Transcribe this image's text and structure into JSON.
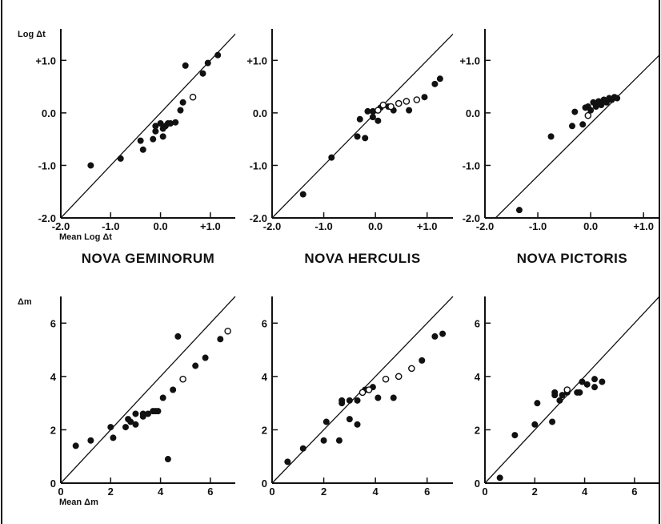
{
  "chart_data": [
    {
      "type": "scatter",
      "title": "",
      "xlabel": "Mean Log Δt",
      "ylabel": "Log Δt",
      "xlim": [
        -2.0,
        1.5
      ],
      "ylim": [
        -2.0,
        1.6
      ],
      "xticks": [
        -2.0,
        -1.0,
        0.0,
        1.0
      ],
      "xtick_labels": [
        "-2.0",
        "-1.0",
        "0.0",
        "+1.0"
      ],
      "yticks": [
        -2.0,
        -1.0,
        0.0,
        1.0
      ],
      "ytick_labels": [
        "-2.0",
        "-1.0",
        "0.0",
        "+1.0"
      ],
      "reference_line": "y = x",
      "series": [
        {
          "marker": "filled",
          "points": [
            [
              -1.4,
              -1.0
            ],
            [
              -0.8,
              -0.87
            ],
            [
              -0.4,
              -0.53
            ],
            [
              -0.35,
              -0.7
            ],
            [
              -0.15,
              -0.5
            ],
            [
              -0.1,
              -0.35
            ],
            [
              -0.1,
              -0.25
            ],
            [
              0.0,
              -0.2
            ],
            [
              0.05,
              -0.3
            ],
            [
              0.05,
              -0.45
            ],
            [
              0.1,
              -0.25
            ],
            [
              0.15,
              -0.2
            ],
            [
              0.2,
              -0.2
            ],
            [
              0.3,
              -0.18
            ],
            [
              0.4,
              0.05
            ],
            [
              0.45,
              0.2
            ],
            [
              0.5,
              0.9
            ],
            [
              0.85,
              0.75
            ],
            [
              0.95,
              0.95
            ],
            [
              1.15,
              1.1
            ]
          ]
        },
        {
          "marker": "open",
          "points": [
            [
              0.65,
              0.3
            ]
          ]
        }
      ],
      "footer": "NOVA GEMINORUM"
    },
    {
      "type": "scatter",
      "title": "",
      "xlabel": "",
      "ylabel": "",
      "xlim": [
        -2.0,
        1.5
      ],
      "ylim": [
        -2.0,
        1.6
      ],
      "xticks": [
        -2.0,
        -1.0,
        0.0,
        1.0
      ],
      "xtick_labels": [
        "-2.0",
        "-1.0",
        "0.0",
        "+1.0"
      ],
      "yticks": [
        -2.0,
        -1.0,
        0.0,
        1.0
      ],
      "ytick_labels": [
        "-2.0",
        "-1.0",
        "0.0",
        "+1.0"
      ],
      "reference_line": "y = x",
      "series": [
        {
          "marker": "filled",
          "points": [
            [
              -1.4,
              -1.55
            ],
            [
              -0.85,
              -0.85
            ],
            [
              -0.35,
              -0.45
            ],
            [
              -0.3,
              -0.12
            ],
            [
              -0.2,
              -0.48
            ],
            [
              -0.15,
              0.03
            ],
            [
              -0.05,
              0.03
            ],
            [
              -0.05,
              -0.08
            ],
            [
              0.05,
              -0.15
            ],
            [
              0.1,
              0.1
            ],
            [
              0.25,
              0.12
            ],
            [
              0.35,
              0.05
            ],
            [
              0.65,
              0.05
            ],
            [
              0.95,
              0.3
            ],
            [
              1.15,
              0.55
            ],
            [
              1.25,
              0.65
            ]
          ]
        },
        {
          "marker": "open",
          "points": [
            [
              0.05,
              0.05
            ],
            [
              0.15,
              0.15
            ],
            [
              0.3,
              0.12
            ],
            [
              0.45,
              0.18
            ],
            [
              0.6,
              0.22
            ],
            [
              0.8,
              0.25
            ]
          ]
        }
      ],
      "footer": "NOVA HERCULIS"
    },
    {
      "type": "scatter",
      "title": "",
      "xlabel": "",
      "ylabel": "",
      "xlim": [
        -2.0,
        1.3
      ],
      "ylim": [
        -2.0,
        1.6
      ],
      "xticks": [
        -2.0,
        -1.0,
        0.0,
        1.0
      ],
      "xtick_labels": [
        "-2.0",
        "-1.0",
        "0.0",
        "+1.0"
      ],
      "yticks": [
        -2.0,
        -1.0,
        0.0,
        1.0
      ],
      "ytick_labels": [
        "-2.0",
        "-1.0",
        "0.0",
        "+1.0"
      ],
      "reference_line": "y = x - 0.2",
      "series": [
        {
          "marker": "filled",
          "points": [
            [
              -1.35,
              -1.85
            ],
            [
              -0.75,
              -0.45
            ],
            [
              -0.35,
              -0.25
            ],
            [
              -0.3,
              0.02
            ],
            [
              -0.15,
              -0.22
            ],
            [
              -0.1,
              0.1
            ],
            [
              -0.05,
              0.12
            ],
            [
              0.0,
              0.05
            ],
            [
              0.05,
              0.2
            ],
            [
              0.1,
              0.12
            ],
            [
              0.15,
              0.22
            ],
            [
              0.2,
              0.15
            ],
            [
              0.25,
              0.25
            ],
            [
              0.3,
              0.2
            ],
            [
              0.35,
              0.28
            ],
            [
              0.4,
              0.25
            ],
            [
              0.45,
              0.3
            ],
            [
              0.5,
              0.28
            ]
          ]
        },
        {
          "marker": "open",
          "points": [
            [
              -0.05,
              -0.05
            ]
          ]
        }
      ],
      "footer": "NOVA PICTORIS"
    },
    {
      "type": "scatter",
      "title": "",
      "xlabel": "Mean Δm",
      "ylabel": "Δm",
      "xlim": [
        0,
        7
      ],
      "ylim": [
        0,
        7
      ],
      "xticks": [
        0,
        2,
        4,
        6
      ],
      "xtick_labels": [
        "0",
        "2",
        "4",
        "6"
      ],
      "yticks": [
        0,
        2,
        4,
        6
      ],
      "ytick_labels": [
        "0",
        "2",
        "4",
        "6"
      ],
      "reference_line": "y = x",
      "series": [
        {
          "marker": "filled",
          "points": [
            [
              0.6,
              1.4
            ],
            [
              1.2,
              1.6
            ],
            [
              2.0,
              2.1
            ],
            [
              2.1,
              1.7
            ],
            [
              2.6,
              2.1
            ],
            [
              2.7,
              2.4
            ],
            [
              2.8,
              2.3
            ],
            [
              3.0,
              2.6
            ],
            [
              3.0,
              2.2
            ],
            [
              3.3,
              2.5
            ],
            [
              3.3,
              2.6
            ],
            [
              3.5,
              2.6
            ],
            [
              3.7,
              2.7
            ],
            [
              3.8,
              2.7
            ],
            [
              3.9,
              2.7
            ],
            [
              4.1,
              3.2
            ],
            [
              4.3,
              0.9
            ],
            [
              4.5,
              3.5
            ],
            [
              4.7,
              5.5
            ],
            [
              5.4,
              4.4
            ],
            [
              5.8,
              4.7
            ],
            [
              6.4,
              5.4
            ]
          ]
        },
        {
          "marker": "open",
          "points": [
            [
              4.9,
              3.9
            ],
            [
              6.7,
              5.7
            ]
          ]
        }
      ]
    },
    {
      "type": "scatter",
      "title": "",
      "xlabel": "",
      "ylabel": "",
      "xlim": [
        0,
        7
      ],
      "ylim": [
        0,
        7
      ],
      "xticks": [
        0,
        2,
        4,
        6
      ],
      "xtick_labels": [
        "0",
        "2",
        "4",
        "6"
      ],
      "yticks": [
        0,
        2,
        4,
        6
      ],
      "ytick_labels": [
        "0",
        "2",
        "4",
        "6"
      ],
      "reference_line": "y = x",
      "series": [
        {
          "marker": "filled",
          "points": [
            [
              0.6,
              0.8
            ],
            [
              1.2,
              1.3
            ],
            [
              2.0,
              1.6
            ],
            [
              2.1,
              2.3
            ],
            [
              2.6,
              1.6
            ],
            [
              2.7,
              3.0
            ],
            [
              2.7,
              3.1
            ],
            [
              3.0,
              3.1
            ],
            [
              3.0,
              2.4
            ],
            [
              3.3,
              3.1
            ],
            [
              3.3,
              2.2
            ],
            [
              3.6,
              3.5
            ],
            [
              3.9,
              3.6
            ],
            [
              4.1,
              3.2
            ],
            [
              4.7,
              3.2
            ],
            [
              5.8,
              4.6
            ],
            [
              6.3,
              5.5
            ],
            [
              6.6,
              5.6
            ]
          ]
        },
        {
          "marker": "open",
          "points": [
            [
              3.5,
              3.4
            ],
            [
              3.75,
              3.5
            ],
            [
              4.4,
              3.9
            ],
            [
              4.9,
              4.0
            ],
            [
              5.4,
              4.3
            ]
          ]
        }
      ]
    },
    {
      "type": "scatter",
      "title": "",
      "xlabel": "",
      "ylabel": "",
      "xlim": [
        0,
        7
      ],
      "ylim": [
        0,
        7
      ],
      "xticks": [
        0,
        2,
        4,
        6
      ],
      "xtick_labels": [
        "0",
        "2",
        "4",
        "6"
      ],
      "yticks": [
        0,
        2,
        4,
        6
      ],
      "ytick_labels": [
        "0",
        "2",
        "4",
        "6"
      ],
      "reference_line": "y = x",
      "series": [
        {
          "marker": "filled",
          "points": [
            [
              0.6,
              0.2
            ],
            [
              1.2,
              1.8
            ],
            [
              2.0,
              2.2
            ],
            [
              2.1,
              3.0
            ],
            [
              2.7,
              2.3
            ],
            [
              2.8,
              3.3
            ],
            [
              2.8,
              3.4
            ],
            [
              3.0,
              3.1
            ],
            [
              3.1,
              3.3
            ],
            [
              3.3,
              3.4
            ],
            [
              3.7,
              3.4
            ],
            [
              3.8,
              3.4
            ],
            [
              3.9,
              3.8
            ],
            [
              4.1,
              3.7
            ],
            [
              4.4,
              3.9
            ],
            [
              4.4,
              3.6
            ],
            [
              4.7,
              3.8
            ]
          ]
        },
        {
          "marker": "open",
          "points": [
            [
              3.3,
              3.5
            ]
          ]
        }
      ]
    }
  ]
}
